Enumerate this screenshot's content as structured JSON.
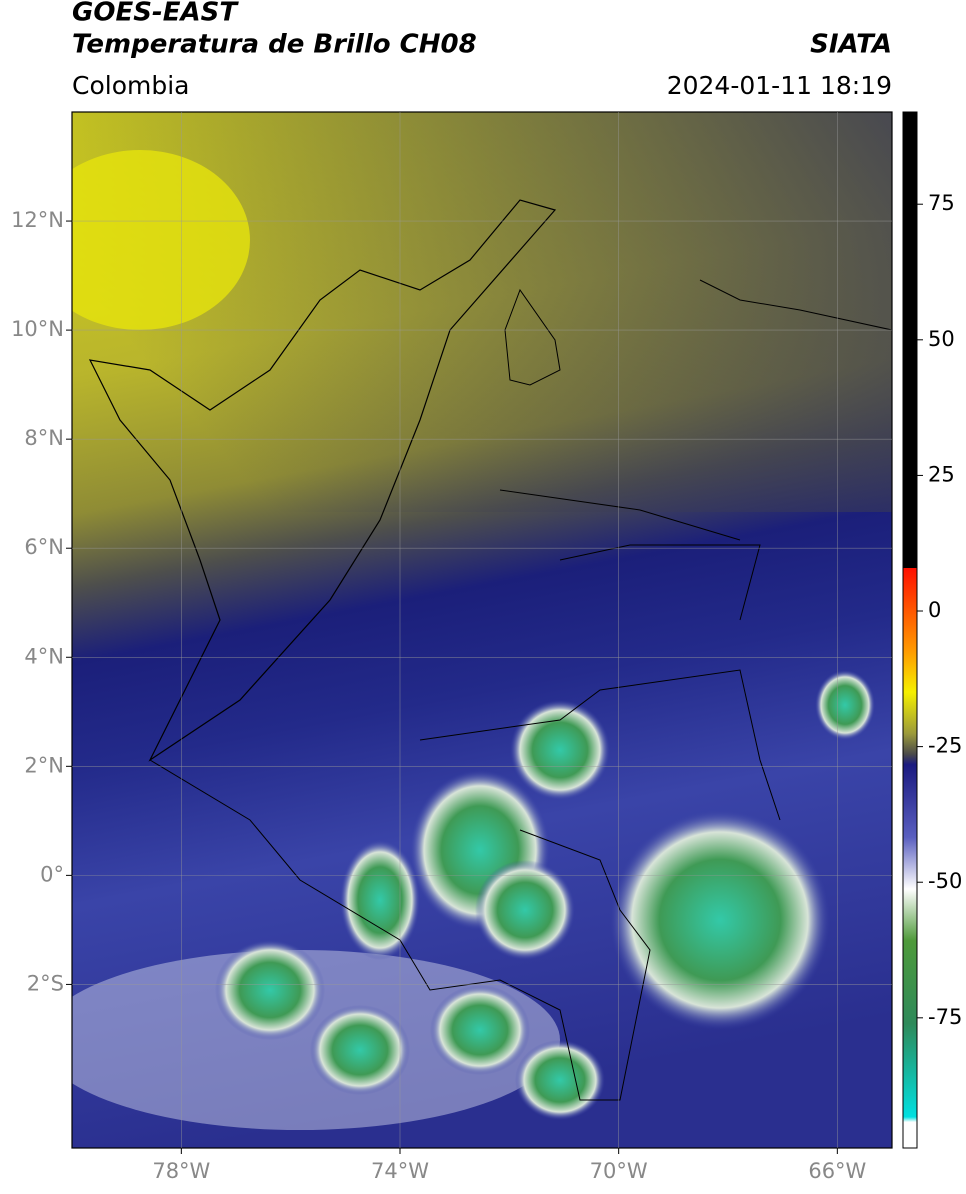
{
  "header": {
    "satellite": "GOES-EAST",
    "product": "Temperatura de Brillo CH08",
    "source": "SIATA",
    "region": "Colombia",
    "datetime": "2024-01-11 18:19"
  },
  "map": {
    "xlim": [
      -80,
      -65
    ],
    "ylim": [
      -5,
      14
    ],
    "xticks": [
      {
        "value": -78,
        "label": "78°W"
      },
      {
        "value": -74,
        "label": "74°W"
      },
      {
        "value": -70,
        "label": "70°W"
      },
      {
        "value": -66,
        "label": "66°W"
      }
    ],
    "yticks": [
      {
        "value": 12,
        "label": "12°N"
      },
      {
        "value": 10,
        "label": "10°N"
      },
      {
        "value": 8,
        "label": "8°N"
      },
      {
        "value": 6,
        "label": "6°N"
      },
      {
        "value": 4,
        "label": "4°N"
      },
      {
        "value": 2,
        "label": "2°N"
      },
      {
        "value": 0,
        "label": "0°"
      },
      {
        "value": -2,
        "label": "2°S"
      }
    ]
  },
  "colorbar": {
    "lim": [
      -99,
      92
    ],
    "ticks": [
      75,
      50,
      25,
      0,
      -25,
      -50,
      -75
    ]
  }
}
